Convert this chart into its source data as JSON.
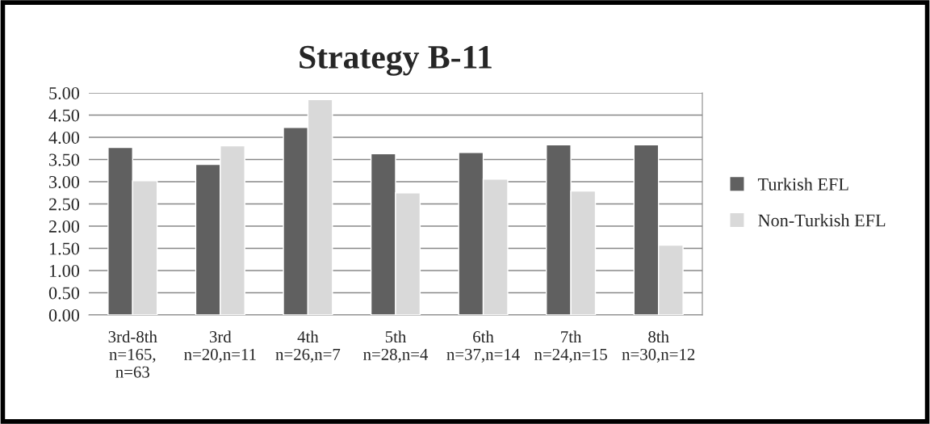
{
  "chart_data": {
    "type": "bar",
    "title": "Strategy B-11",
    "categories": [
      "3rd-8th\nn=165,\nn=63",
      "3rd\nn=20,n=11",
      "4th\nn=26,n=7",
      "5th\nn=28,n=4",
      "6th\nn=37,n=14",
      "7th\nn=24,n=15",
      "8th\nn=30,n=12"
    ],
    "series": [
      {
        "name": "Turkish EFL",
        "color": "#606060",
        "values": [
          3.77,
          3.39,
          4.22,
          3.63,
          3.66,
          3.83,
          3.83
        ]
      },
      {
        "name": "Non-Turkish EFL",
        "color": "#d9d9d9",
        "values": [
          3.02,
          3.81,
          4.85,
          2.75,
          3.06,
          2.79,
          1.57
        ]
      }
    ],
    "ylim": [
      0,
      5
    ],
    "yticks": [
      {
        "value": 0,
        "label": "0.00"
      },
      {
        "value": 0.5,
        "label": "0.50"
      },
      {
        "value": 1,
        "label": "1.00"
      },
      {
        "value": 1.5,
        "label": "1.50"
      },
      {
        "value": 2,
        "label": "2.00"
      },
      {
        "value": 2.5,
        "label": "2.50"
      },
      {
        "value": 3,
        "label": "3.00"
      },
      {
        "value": 3.5,
        "label": "3.50"
      },
      {
        "value": 4,
        "label": "4.00"
      },
      {
        "value": 4.5,
        "label": "4.50"
      },
      {
        "value": 5,
        "label": "5.00"
      }
    ],
    "grid": "y",
    "legend": "right"
  }
}
